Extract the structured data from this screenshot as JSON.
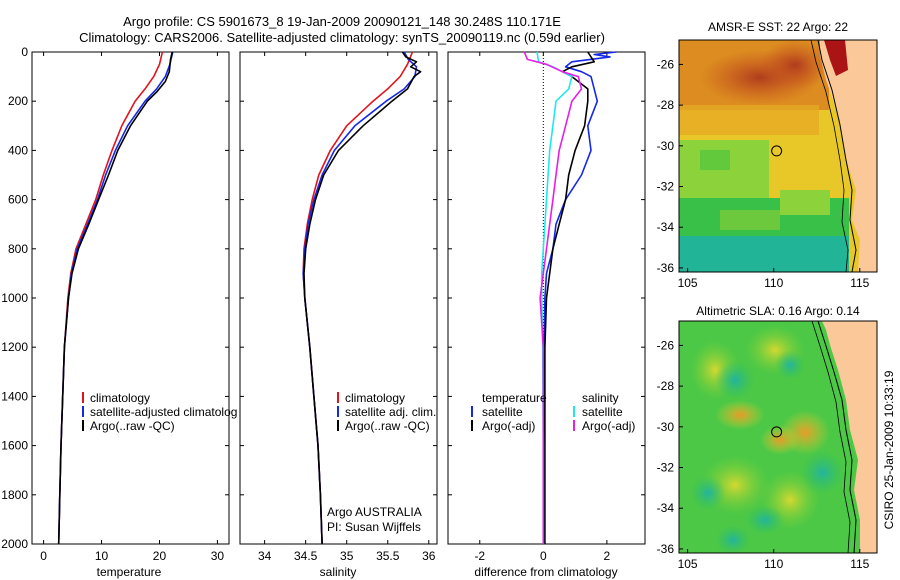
{
  "title": {
    "line1": "Argo profile: CS 5901673_8 19-Jan-2009 20090121_148 30.248S 110.171E",
    "line2": "Climatology: CARS2006. Satellite-adjusted climatology: synTS_20090119.nc (0.59d earlier)"
  },
  "side_label": "CSIRO 25-Jan-2009 10:33:19",
  "colors": {
    "red": "#e0141e",
    "blue": "#1428e6",
    "black": "#000000",
    "cyan": "#22e6ee",
    "magenta": "#e61ee6"
  },
  "chart_data": [
    {
      "type": "line",
      "id": "temperature",
      "xlabel": "temperature",
      "xlim": [
        -2,
        32
      ],
      "ylim": [
        2000,
        0
      ],
      "xticks": [
        0,
        10,
        20,
        30
      ],
      "yticks": [
        0,
        200,
        400,
        600,
        800,
        1000,
        1200,
        1400,
        1600,
        1800,
        2000
      ],
      "legend": [
        "climatology",
        "satellite-adjusted climatolog",
        "Argo(..raw -QC)"
      ],
      "series": [
        {
          "name": "climatology",
          "color": "red",
          "depth": [
            0,
            50,
            100,
            150,
            200,
            300,
            400,
            500,
            600,
            700,
            800,
            900,
            1000,
            1200,
            1400,
            1600,
            1800,
            2000
          ],
          "values": [
            20.5,
            20,
            19,
            17.5,
            15.8,
            13.5,
            11.8,
            10.3,
            9,
            7.3,
            5.6,
            4.7,
            4.2,
            3.6,
            3.3,
            3,
            2.8,
            2.6
          ]
        },
        {
          "name": "satellite-adjusted climatolog",
          "color": "blue",
          "depth": [
            0,
            50,
            100,
            150,
            200,
            300,
            400,
            500,
            600,
            700,
            800,
            900,
            1000,
            1200,
            1400,
            1600,
            1800,
            2000
          ],
          "values": [
            22.3,
            21.8,
            21,
            19.5,
            17.5,
            14.5,
            12.4,
            10.7,
            9.3,
            7.6,
            5.8,
            4.8,
            4.3,
            3.6,
            3.3,
            3,
            2.8,
            2.6
          ]
        },
        {
          "name": "Argo(..raw -QC)",
          "color": "black",
          "depth": [
            0,
            30,
            80,
            120,
            160,
            200,
            300,
            400,
            500,
            600,
            700,
            800,
            900,
            1000,
            1200,
            1400,
            1600,
            1800,
            2000
          ],
          "values": [
            22.2,
            21.9,
            21.7,
            21,
            19.6,
            17.9,
            15,
            12.8,
            11.2,
            9.5,
            7.8,
            6,
            4.9,
            4.3,
            3.6,
            3.3,
            3,
            2.8,
            2.6
          ]
        }
      ]
    },
    {
      "type": "line",
      "id": "salinity",
      "xlabel": "salinity",
      "xlim": [
        33.7,
        36.1
      ],
      "ylim": [
        2000,
        0
      ],
      "xticks": [
        34,
        34.5,
        35,
        35.5,
        36
      ],
      "legend": [
        "climatology",
        "satellite adj. clim.",
        "Argo(..raw -QC)"
      ],
      "annotation": [
        "Argo AUSTRALIA",
        "PI: Susan Wijffels"
      ],
      "series": [
        {
          "name": "climatology",
          "color": "red",
          "depth": [
            0,
            50,
            100,
            150,
            200,
            300,
            400,
            500,
            600,
            700,
            800,
            900,
            1000,
            1200,
            1400,
            1600,
            1800,
            2000
          ],
          "values": [
            35.8,
            35.74,
            35.65,
            35.5,
            35.32,
            35,
            34.8,
            34.66,
            34.58,
            34.52,
            34.48,
            34.47,
            34.49,
            34.55,
            34.6,
            34.65,
            34.68,
            34.7
          ]
        },
        {
          "name": "satellite adj. clim.",
          "color": "blue",
          "depth": [
            0,
            30,
            60,
            100,
            150,
            200,
            300,
            400,
            500,
            600,
            700,
            800,
            900,
            1000,
            1200,
            1400,
            1600,
            1800,
            2000
          ],
          "values": [
            35.7,
            35.75,
            35.85,
            35.83,
            35.7,
            35.48,
            35.1,
            34.85,
            34.7,
            34.6,
            34.53,
            34.49,
            34.47,
            34.49,
            34.55,
            34.6,
            34.65,
            34.68,
            34.7
          ]
        },
        {
          "name": "Argo(..raw -QC)",
          "color": "black",
          "depth": [
            0,
            20,
            40,
            60,
            80,
            100,
            150,
            200,
            300,
            400,
            500,
            600,
            700,
            800,
            900,
            1000,
            1200,
            1400,
            1600,
            1800,
            2000
          ],
          "values": [
            35.68,
            35.72,
            35.85,
            35.78,
            35.9,
            35.82,
            35.74,
            35.55,
            35.2,
            34.9,
            34.72,
            34.62,
            34.55,
            34.5,
            34.48,
            34.49,
            34.55,
            34.6,
            34.65,
            34.68,
            34.7
          ]
        }
      ]
    },
    {
      "type": "line",
      "id": "difference",
      "xlabel": "difference from climatology",
      "xlim": [
        -3,
        3.2
      ],
      "ylim": [
        2000,
        0
      ],
      "xticks": [
        -2,
        0,
        2
      ],
      "legend": [
        "temperature",
        "satellite",
        "Argo(-adj)",
        "salinity",
        "satellite",
        "Argo(-adj)"
      ],
      "series": [
        {
          "name": "temperature satellite",
          "color": "blue",
          "depth": [
            0,
            10,
            20,
            40,
            60,
            80,
            100,
            150,
            200,
            300,
            400,
            500,
            600,
            700,
            800,
            900,
            1000,
            1200,
            1600,
            2000
          ],
          "values": [
            2.3,
            1.6,
            2.1,
            0.9,
            0.7,
            1.2,
            1.5,
            1.6,
            1.7,
            1.4,
            1.5,
            1.2,
            0.7,
            0.4,
            0.3,
            0.1,
            0.05,
            0.02,
            0.02,
            0.02
          ]
        },
        {
          "name": "temperature Argo(-adj)",
          "color": "black",
          "depth": [
            0,
            40,
            60,
            80,
            100,
            150,
            200,
            300,
            400,
            500,
            600,
            700,
            800,
            900,
            1000,
            1200,
            1600,
            2000
          ],
          "values": [
            1.4,
            1.6,
            0.9,
            0.6,
            0.9,
            1.4,
            1.4,
            1.3,
            1.0,
            0.8,
            0.7,
            0.5,
            0.3,
            0.2,
            0.1,
            0.05,
            0.05,
            0.05
          ]
        },
        {
          "name": "salinity satellite",
          "color": "cyan",
          "depth": [
            0,
            40,
            60,
            100,
            150,
            200,
            300,
            400,
            500,
            600,
            700,
            800,
            900,
            1000,
            1200,
            1600,
            2000
          ],
          "values": [
            -0.2,
            -0.15,
            0.3,
            0.9,
            0.8,
            0.4,
            0.3,
            0.2,
            0.15,
            0.1,
            0.05,
            0,
            -0.05,
            -0.05,
            -0.02,
            0,
            0
          ]
        },
        {
          "name": "salinity Argo(-adj)",
          "color": "magenta",
          "depth": [
            0,
            30,
            50,
            80,
            100,
            150,
            200,
            300,
            400,
            500,
            600,
            700,
            800,
            900,
            1000,
            1200,
            1600,
            2000
          ],
          "values": [
            -0.6,
            -0.5,
            0.1,
            0.6,
            1.1,
            1.2,
            0.9,
            0.7,
            0.5,
            0.4,
            0.3,
            0.2,
            0.1,
            0,
            -0.1,
            0,
            0,
            0
          ]
        }
      ]
    },
    {
      "type": "heatmap",
      "id": "sst_map",
      "title": "AMSR-E SST: 22 Argo: 22",
      "xlim": [
        104.5,
        116
      ],
      "ylim": [
        -36.2,
        -24.8
      ],
      "xticks": [
        105,
        110,
        115
      ],
      "yticks": [
        -26,
        -28,
        -30,
        -32,
        -34,
        -36
      ],
      "marker": [
        110.17,
        -30.25
      ]
    },
    {
      "type": "heatmap",
      "id": "sla_map",
      "title": "Altimetric SLA: 0.16 Argo: 0.14",
      "xlim": [
        104.5,
        116
      ],
      "ylim": [
        -36.2,
        -24.8
      ],
      "xticks": [
        105,
        110,
        115
      ],
      "yticks": [
        -26,
        -28,
        -30,
        -32,
        -34,
        -36
      ],
      "marker": [
        110.17,
        -30.25
      ]
    }
  ]
}
